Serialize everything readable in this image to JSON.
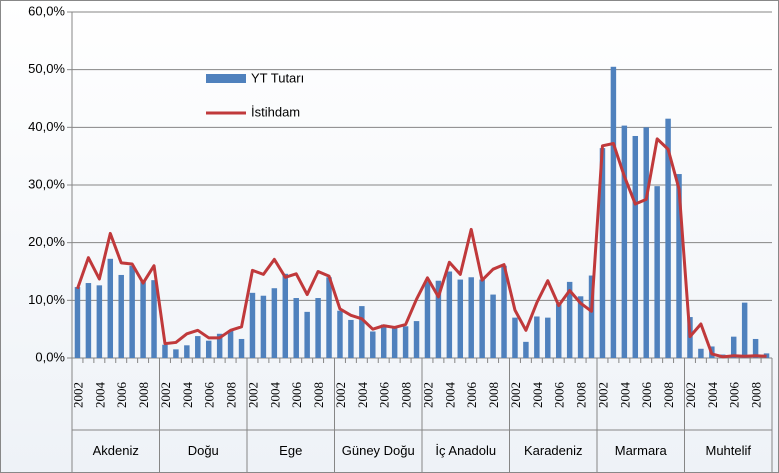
{
  "chart_data": {
    "type": "bar-line",
    "categories": [
      "2002",
      null,
      "2004",
      null,
      "2006",
      null,
      "2008",
      null,
      "2002",
      null,
      "2004",
      null,
      "2006",
      null,
      "2008",
      null,
      "2002",
      null,
      "2004",
      null,
      "2006",
      null,
      "2008",
      null,
      "2002",
      null,
      "2004",
      null,
      "2006",
      null,
      "2008",
      null,
      "2002",
      null,
      "2004",
      null,
      "2006",
      null,
      "2008",
      null,
      "2002",
      null,
      "2004",
      null,
      "2006",
      null,
      "2008",
      null,
      "2002",
      null,
      "2004",
      null,
      "2006",
      null,
      "2008",
      null,
      "2002",
      null,
      "2004",
      null,
      "2006",
      null,
      "2008",
      null
    ],
    "groups": [
      "Akdeniz",
      "Doğu",
      "Ege",
      "Güney Doğu",
      "İç Anadolu",
      "Karadeniz",
      "Marmara",
      "Muhtelif"
    ],
    "series": [
      {
        "name": "YT Tutarı",
        "color": "#4f81bd",
        "kind": "bar",
        "values": [
          12.3,
          13,
          12.6,
          17.2,
          14.4,
          16,
          13.5,
          13.5,
          2.3,
          1.5,
          2.2,
          3.8,
          3,
          4.2,
          4.8,
          3.3,
          11.3,
          10.8,
          12.1,
          14.6,
          10.4,
          8,
          10.4,
          14,
          8.2,
          6.6,
          9,
          4.6,
          5.8,
          5.2,
          5.5,
          6.4,
          13.3,
          13.4,
          15,
          13.6,
          14,
          13.6,
          11,
          16,
          7,
          2.8,
          7.2,
          7,
          9.4,
          13.2,
          10.7,
          14.3,
          36.4,
          50.5,
          40.3,
          38.5,
          40,
          29.8,
          41.5,
          31.9,
          7.1,
          1.6,
          2,
          0.6,
          3.7,
          9.6,
          3.3,
          0.8
        ]
      },
      {
        "name": "İstihdam",
        "color": "#c0393b",
        "kind": "line",
        "values": [
          12,
          17.4,
          13.7,
          21.6,
          16.5,
          16.3,
          13,
          16,
          2.5,
          2.7,
          4.2,
          4.8,
          3.5,
          3.5,
          4.8,
          5.4,
          15.2,
          14.5,
          17.1,
          14,
          14.6,
          11,
          15,
          14.2,
          8.5,
          7.4,
          6.8,
          5,
          5.6,
          5.3,
          5.8,
          10.2,
          13.9,
          10.6,
          16.6,
          14.5,
          22.3,
          13.5,
          15.4,
          16.2,
          8.3,
          4.8,
          9.6,
          13.4,
          9.1,
          11.7,
          9.5,
          8.1,
          36.8,
          37.2,
          31.5,
          26.7,
          27.5,
          38,
          36.2,
          29.3,
          3.7,
          5.9,
          0.7,
          0.2,
          0.4,
          0.3,
          0.4,
          0.3
        ]
      }
    ],
    "ylim": [
      0,
      60
    ],
    "yticks": [
      {
        "value": 0,
        "label": "0,0%"
      },
      {
        "value": 10,
        "label": "10,0%"
      },
      {
        "value": 20,
        "label": "20,0%"
      },
      {
        "value": 30,
        "label": "30,0%"
      },
      {
        "value": 40,
        "label": "40,0%"
      },
      {
        "value": 50,
        "label": "50,0%"
      },
      {
        "value": 60,
        "label": "60,0%"
      }
    ],
    "grid": true
  }
}
